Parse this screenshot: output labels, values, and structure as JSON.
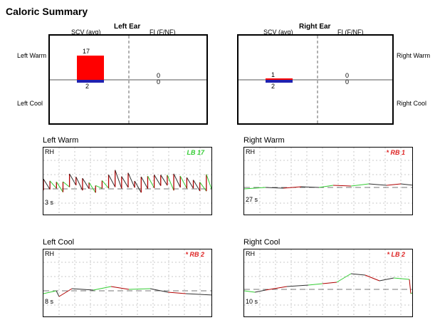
{
  "title": "Caloric Summary",
  "summary": {
    "left_ear": {
      "title": "Left Ear",
      "scv_label": "SCV (avg)",
      "fi_label": "FI (F/NF)",
      "warm_side": "Left Warm",
      "cool_side": "Left Cool",
      "scv_warm": "17",
      "scv_cool": "2",
      "fi_warm": "0",
      "fi_cool": "0"
    },
    "right_ear": {
      "title": "Right Ear",
      "scv_label": "SCV (avg)",
      "fi_label": "FI (F/NF)",
      "warm_side": "Right Warm",
      "cool_side": "Right Cool",
      "scv_warm": "1",
      "scv_cool": "2",
      "fi_warm": "0",
      "fi_cool": "0"
    }
  },
  "traces": {
    "left_warm": {
      "title": "Left Warm",
      "channel": "RH",
      "badge": "LB 17",
      "duration": "3 s"
    },
    "right_warm": {
      "title": "Right Warm",
      "channel": "RH",
      "badge": "* RB 1",
      "duration": "27 s"
    },
    "left_cool": {
      "title": "Left Cool",
      "channel": "RH",
      "badge": "* RB 2",
      "duration": "8 s"
    },
    "right_cool": {
      "title": "Right Cool",
      "channel": "RH",
      "badge": "* LB 2",
      "duration": "10 s"
    }
  },
  "colors": {
    "warm_bar": "#ff0000",
    "cool_bar": "#2020b0",
    "trace_red": "#b00000",
    "trace_green": "#33cc33",
    "trace_black": "#303030",
    "badge_green": "#33cc33",
    "badge_red": "#dd2222"
  },
  "chart_data": [
    {
      "type": "bar",
      "title": "Left Ear",
      "categories": [
        "Left Warm",
        "Left Cool"
      ],
      "series": [
        {
          "name": "SCV (avg)",
          "values": [
            17,
            2
          ]
        },
        {
          "name": "FI (F/NF)",
          "values": [
            0,
            0
          ]
        }
      ]
    },
    {
      "type": "bar",
      "title": "Right Ear",
      "categories": [
        "Right Warm",
        "Right Cool"
      ],
      "series": [
        {
          "name": "SCV (avg)",
          "values": [
            1,
            2
          ]
        },
        {
          "name": "FI (F/NF)",
          "values": [
            0,
            0
          ]
        }
      ]
    }
  ]
}
